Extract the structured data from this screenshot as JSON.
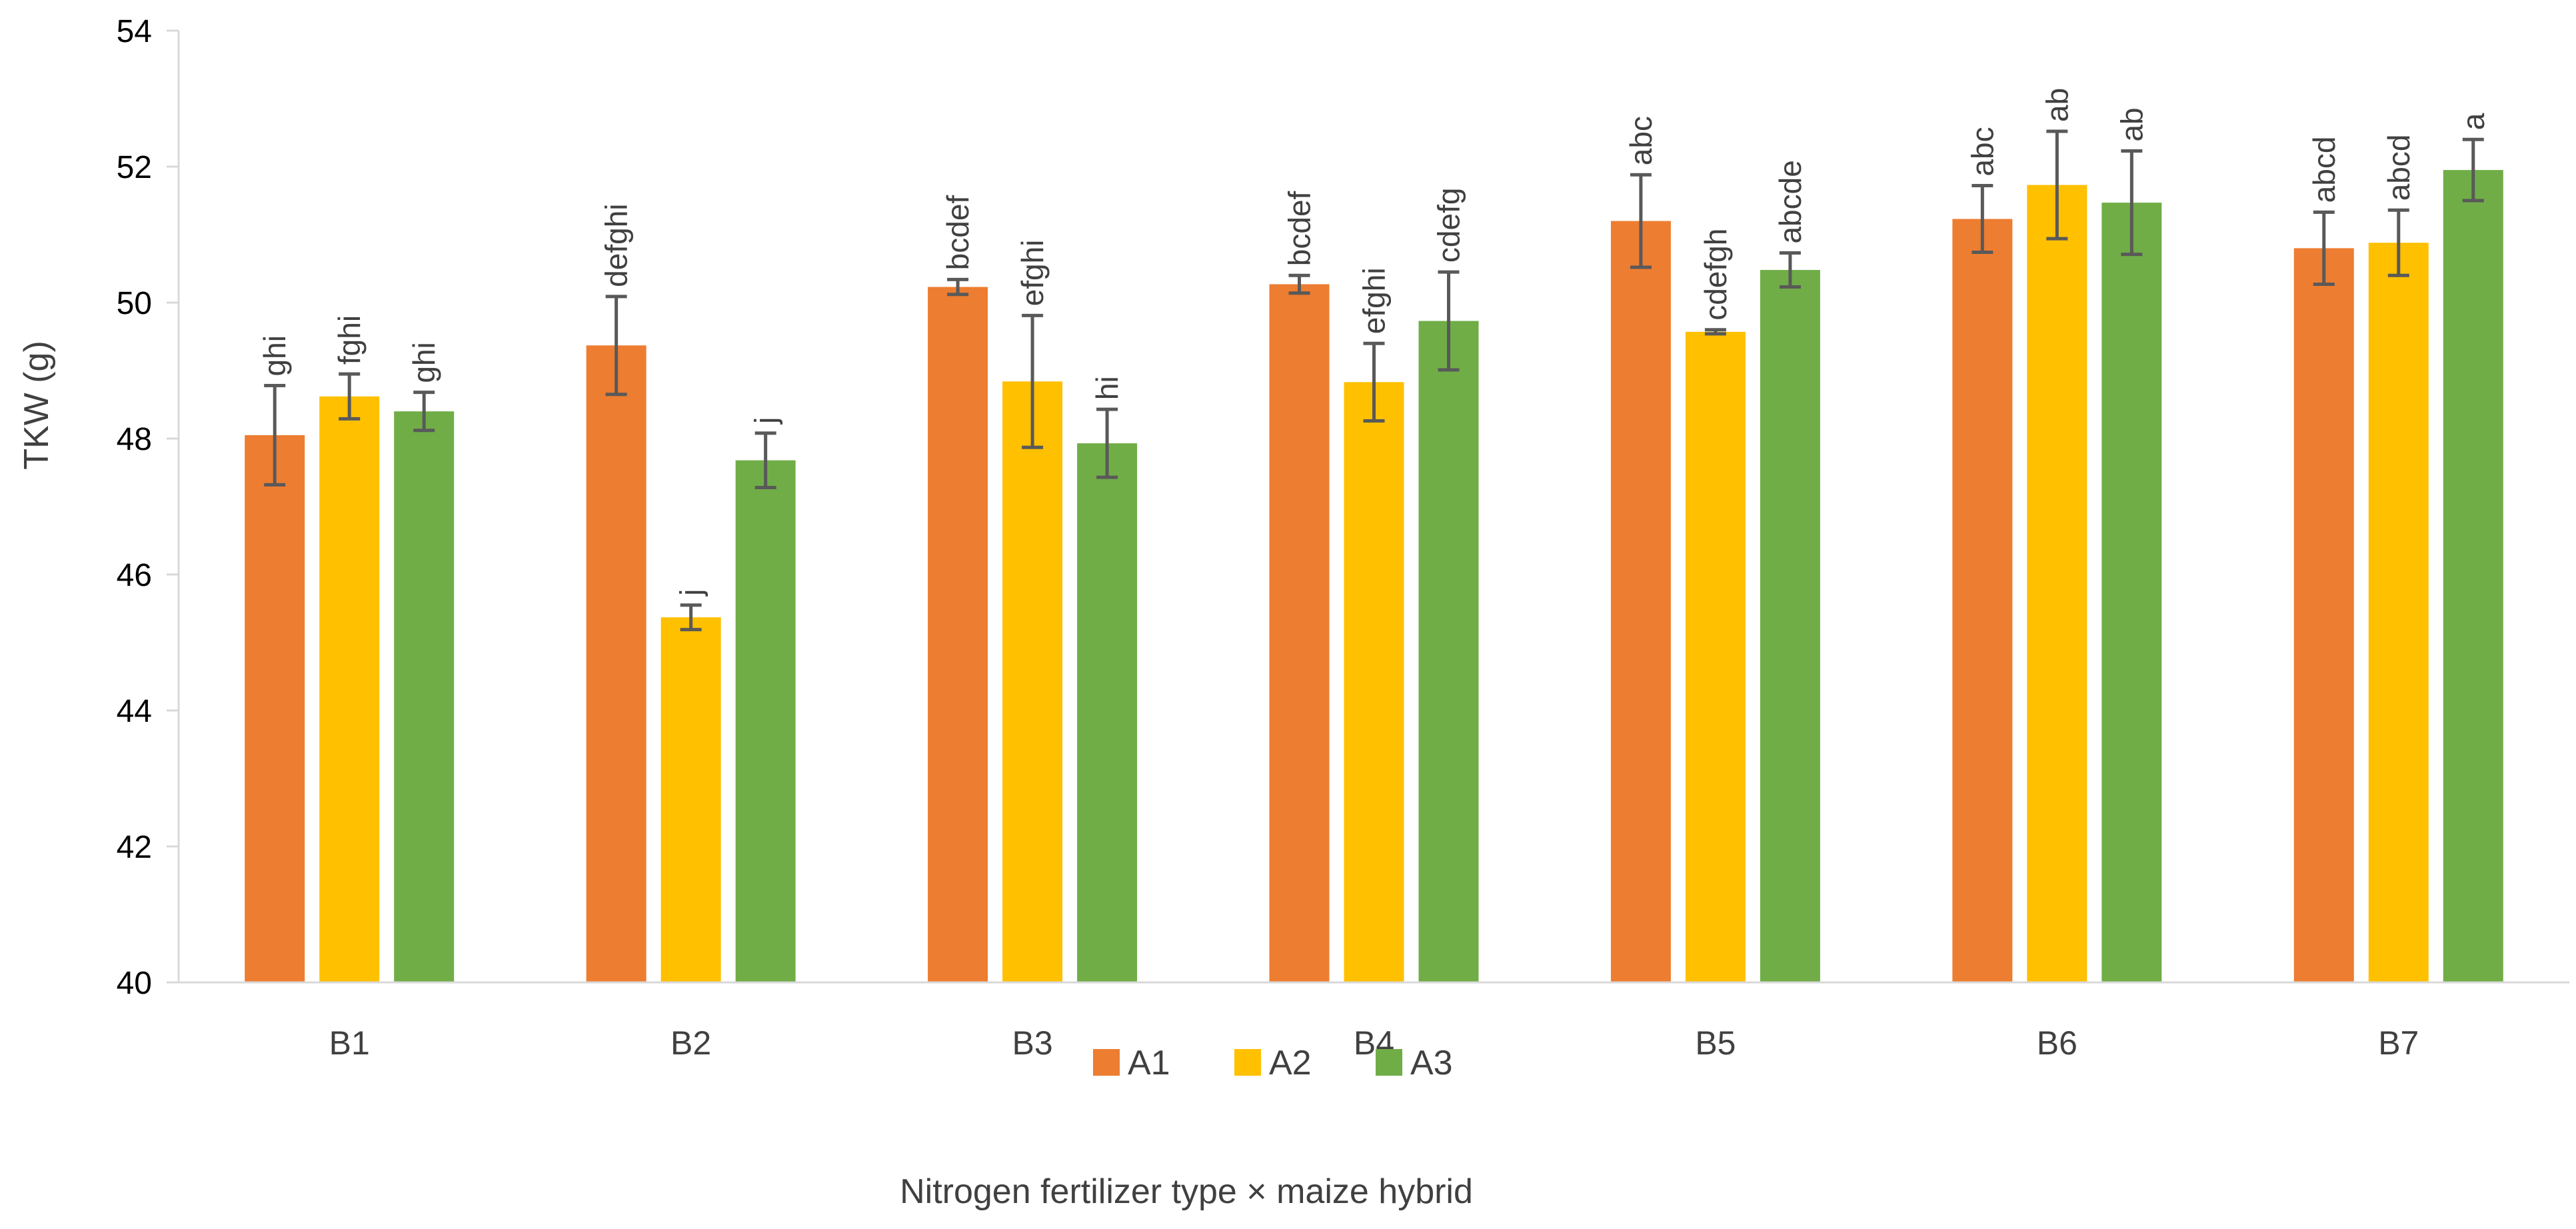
{
  "chart_data": {
    "type": "bar",
    "title": "",
    "xlabel": "Nitrogen fertilizer type × maize hybrid",
    "ylabel": "TKW (g)",
    "ylim": [
      40,
      54
    ],
    "yticks": [
      40,
      42,
      44,
      46,
      48,
      50,
      52,
      54
    ],
    "grid": false,
    "legend_position": "bottom-center",
    "categories": [
      "B1",
      "B2",
      "B3",
      "B4",
      "B5",
      "B6",
      "B7"
    ],
    "series": [
      {
        "name": "A1",
        "color": "#ED7D31",
        "values": [
          48.05,
          49.37,
          50.23,
          50.27,
          51.2,
          51.23,
          50.8
        ],
        "errors": [
          0.73,
          0.72,
          0.11,
          0.13,
          0.68,
          0.49,
          0.53
        ],
        "labels": [
          "ghi",
          "defghi",
          "bcdef",
          "bcdef",
          "abc",
          "abc",
          "abcd"
        ]
      },
      {
        "name": "A2",
        "color": "#FFC000",
        "values": [
          48.62,
          45.37,
          48.84,
          48.83,
          49.57,
          51.73,
          50.88
        ],
        "errors": [
          0.33,
          0.18,
          0.97,
          0.57,
          0.03,
          0.79,
          0.48
        ],
        "labels": [
          "fghi",
          "j",
          "efghi",
          "efghi",
          "cdefgh",
          "ab",
          "abcd"
        ]
      },
      {
        "name": "A3",
        "color": "#70AD47",
        "values": [
          48.4,
          47.68,
          47.93,
          49.73,
          50.48,
          51.47,
          51.95
        ],
        "errors": [
          0.28,
          0.4,
          0.5,
          0.72,
          0.25,
          0.76,
          0.45
        ],
        "labels": [
          "ghi",
          "j",
          "hi",
          "cdefg",
          "abcde",
          "ab",
          "a"
        ]
      }
    ]
  }
}
